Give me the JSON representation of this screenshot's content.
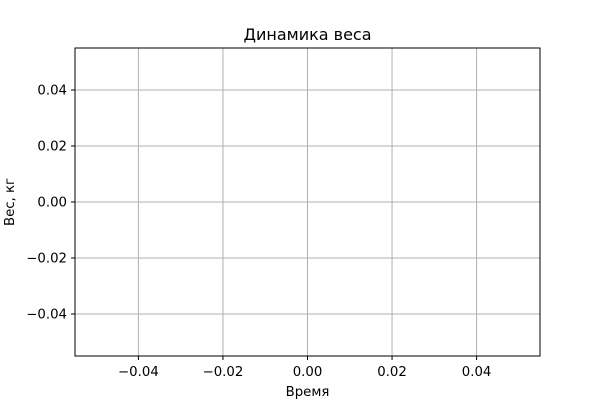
{
  "chart_data": {
    "type": "line",
    "title": "Динамика веса",
    "xlabel": "Время",
    "ylabel": "Вес, кг",
    "series": [],
    "xlim": [
      -0.055,
      0.055
    ],
    "ylim": [
      -0.055,
      0.055
    ],
    "xticks": [
      -0.04,
      -0.02,
      0.0,
      0.02,
      0.04
    ],
    "yticks": [
      -0.04,
      -0.02,
      0.0,
      0.02,
      0.04
    ],
    "xtick_labels": [
      "−0.04",
      "−0.02",
      "0.00",
      "0.02",
      "0.04"
    ],
    "ytick_labels": [
      "−0.04",
      "−0.02",
      "0.00",
      "0.02",
      "0.04"
    ],
    "grid": true,
    "colors": {
      "grid": "#b0b0b0",
      "axes": "#000000",
      "background": "#ffffff"
    }
  }
}
